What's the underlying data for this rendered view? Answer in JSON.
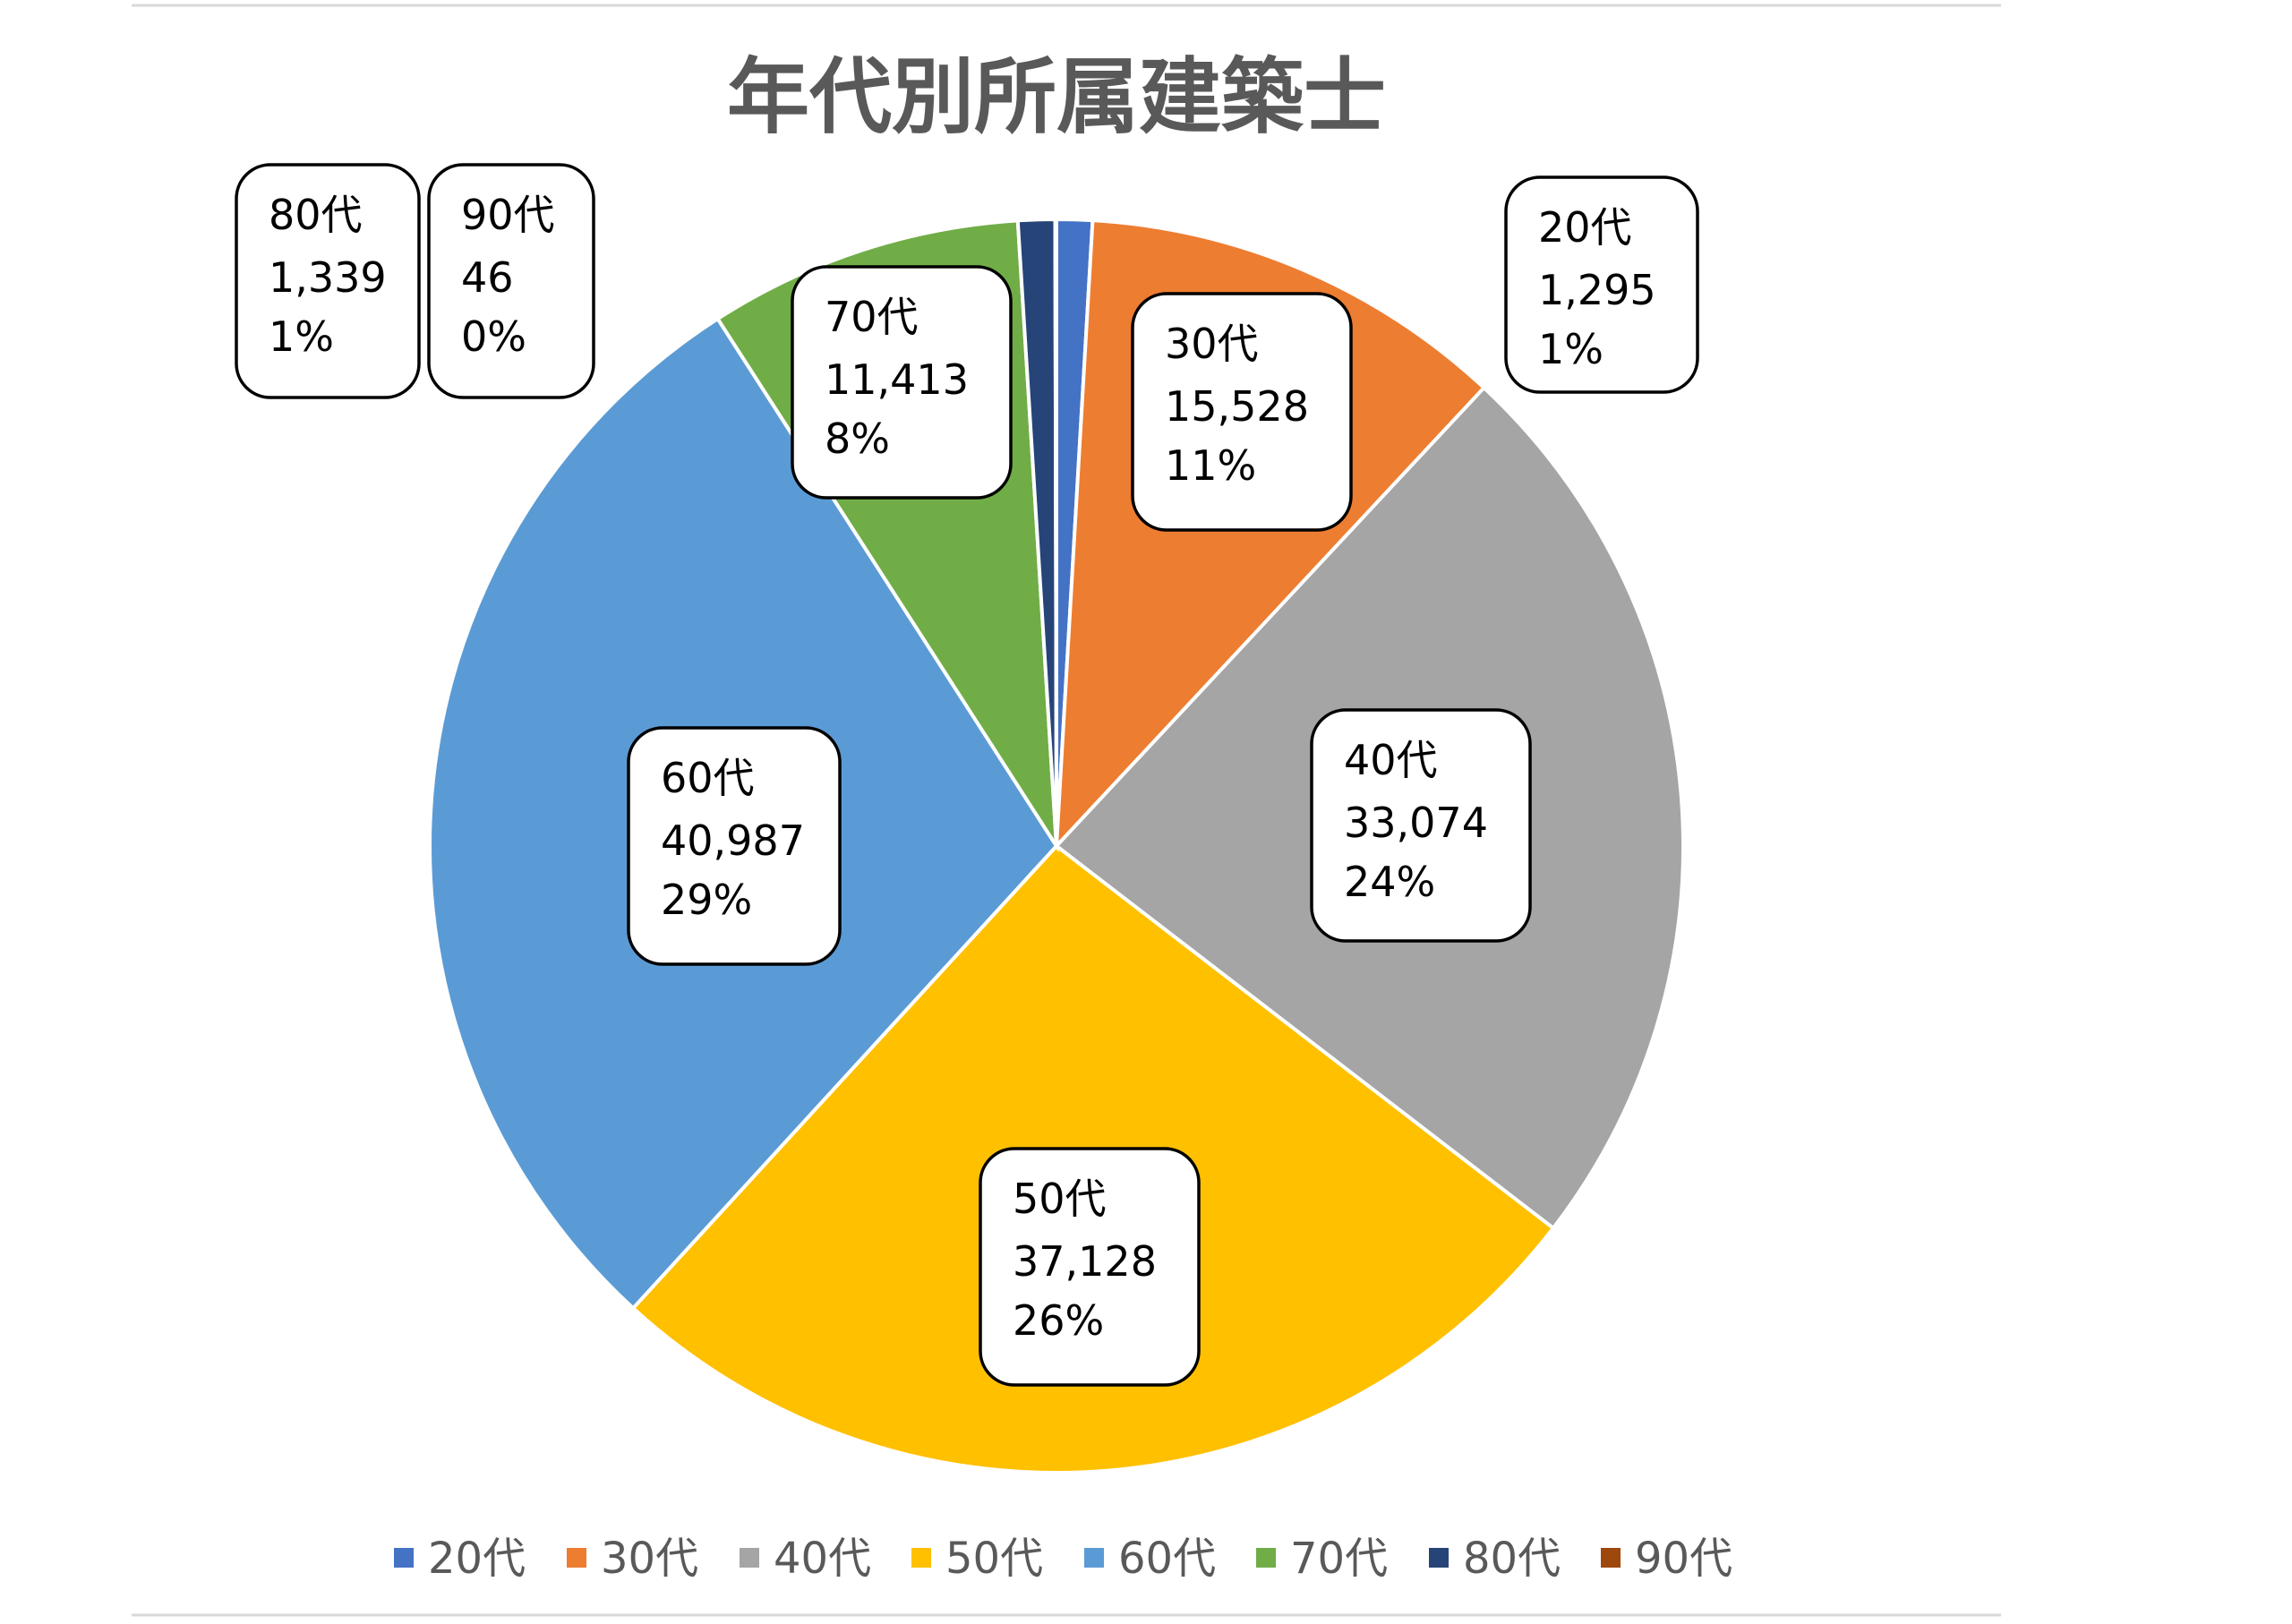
{
  "chart_data": {
    "type": "pie",
    "title": "年代別所属建築士",
    "categories": [
      "20代",
      "30代",
      "40代",
      "50代",
      "60代",
      "70代",
      "80代",
      "90代"
    ],
    "values": [
      1295,
      15528,
      33074,
      37128,
      40987,
      11413,
      1339,
      46
    ],
    "value_labels": [
      "1,295",
      "15,528",
      "33,074",
      "37,128",
      "40,987",
      "11,413",
      "1,339",
      "46"
    ],
    "percent_labels": [
      "1%",
      "11%",
      "24%",
      "26%",
      "29%",
      "8%",
      "1%",
      "0%"
    ],
    "colors": [
      "#4472c4",
      "#ed7d31",
      "#a5a5a5",
      "#ffc000",
      "#5b9bd5",
      "#70ad47",
      "#264478",
      "#9e480e"
    ],
    "legend_position": "bottom"
  }
}
